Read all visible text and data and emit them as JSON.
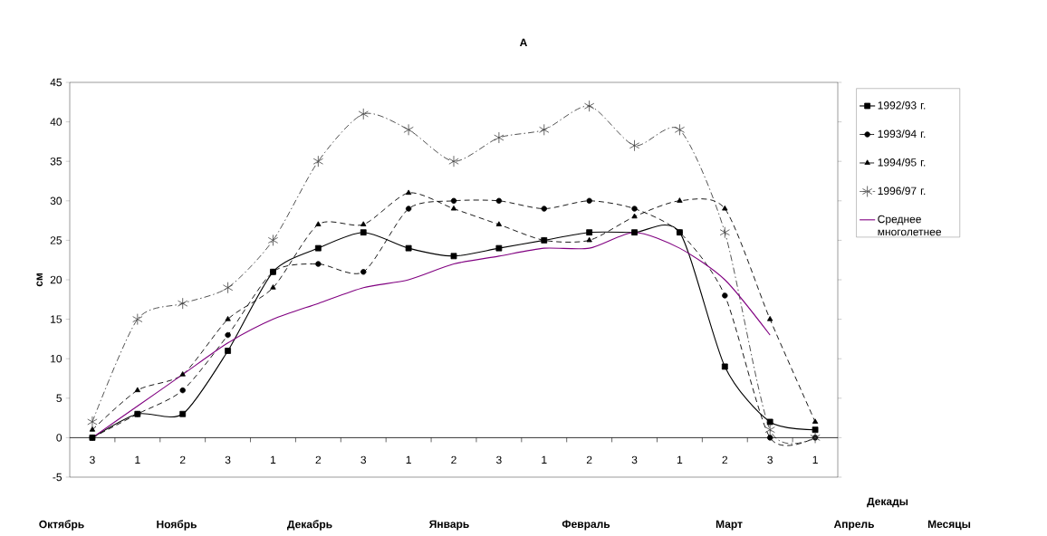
{
  "chart_data": {
    "type": "line",
    "title": "A",
    "ylabel": "см",
    "xlabel": "Декады",
    "categories": [
      "3",
      "1",
      "2",
      "3",
      "1",
      "2",
      "3",
      "1",
      "2",
      "3",
      "1",
      "2",
      "3",
      "1",
      "2",
      "3",
      "1"
    ],
    "series": [
      {
        "name": "1992/93 г.",
        "color": "#000000",
        "marker": "square",
        "line_style": "solid",
        "values": [
          0,
          3,
          3,
          11,
          21,
          24,
          26,
          24,
          23,
          24,
          25,
          26,
          26,
          26,
          9,
          2,
          1
        ]
      },
      {
        "name": "1993/94 г.",
        "color": "#000000",
        "marker": "circle",
        "line_style": "dashed",
        "values": [
          0,
          3,
          6,
          13,
          21,
          22,
          21,
          29,
          30,
          30,
          29,
          30,
          29,
          26,
          18,
          0,
          0
        ]
      },
      {
        "name": "1994/95 г.",
        "color": "#000000",
        "marker": "triangle",
        "line_style": "dashed",
        "values": [
          1,
          6,
          8,
          15,
          19,
          27,
          27,
          31,
          29,
          27,
          25,
          25,
          28,
          30,
          29,
          15,
          2
        ]
      },
      {
        "name": "1996/97 г.",
        "color": "#404040",
        "marker": "cross",
        "line_style": "dashdot",
        "values": [
          2,
          15,
          17,
          19,
          25,
          35,
          41,
          39,
          35,
          38,
          39,
          42,
          37,
          39,
          26,
          1,
          0
        ]
      },
      {
        "name": "Среднее многолетнее",
        "color": "#800080",
        "marker": "none",
        "line_style": "solid",
        "values": [
          0,
          4,
          8,
          12,
          15,
          17,
          19,
          20,
          22,
          23,
          24,
          24,
          26,
          24,
          20,
          13,
          null
        ]
      }
    ],
    "ylim": [
      -5,
      45
    ],
    "yticks": [
      -5,
      0,
      5,
      10,
      15,
      20,
      25,
      30,
      35,
      40,
      45
    ],
    "grid": false,
    "legend": "right",
    "annotations": [
      "Октябрь",
      "Ноябрь",
      "Декабрь",
      "Январь",
      "Февраль",
      "Март",
      "Апрель",
      "Месяцы"
    ]
  }
}
